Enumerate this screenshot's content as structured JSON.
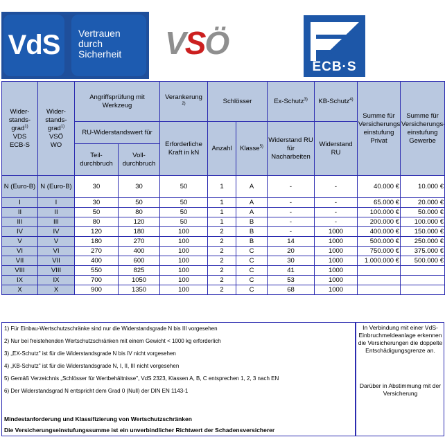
{
  "logos": {
    "vds_short": "VdS",
    "vds_tagline": "Vertrauen\ndurch\nSicherheit",
    "vso_left": "V",
    "vso_mid": "S",
    "vso_right": "Ö",
    "ecb": "ECB·S"
  },
  "header": {
    "wg_vds": [
      "Wider-",
      "stands-",
      "grad",
      "VDS",
      "ECB-S"
    ],
    "wg_vso": [
      "Wider-",
      "stands-",
      "grad",
      "VSÖ",
      "WO"
    ],
    "angriff": "Angriffsprüfung mit Werkzeug",
    "ru_wert": "RU-Widerstandswert für",
    "teil": "Teil-durchbruch",
    "voll": "Voll-durchbruch",
    "verankerung": "Verankerung",
    "kraft": "Erforderliche Kraft in kN",
    "schloesser": "Schlösser",
    "anzahl": "Anzahl",
    "klasse": "Klasse",
    "ex_schutz": "Ex-Schutz",
    "ex_sub": "Widerstand RU für Nacharbeiten",
    "kb_schutz": "KB-Schutz",
    "kb_sub": "Widerstand RU",
    "privat_head": "Summe für Versicherungs-einstufung",
    "privat": "Privat",
    "gewerbe_head": "Summe für Versicherungs-einstufung",
    "gewerbe": "Gewerbe"
  },
  "rows": [
    {
      "vds": "N (Euro-B)",
      "vso": "N (Euro-B)",
      "teil": "30",
      "voll": "30",
      "kraft": "50",
      "anzahl": "1",
      "klasse": "A",
      "ex": "-",
      "kb": "-",
      "privat": "40.000 €",
      "gewerbe": "10.000 €"
    },
    {
      "vds": "I",
      "vso": "I",
      "teil": "30",
      "voll": "50",
      "kraft": "50",
      "anzahl": "1",
      "klasse": "A",
      "ex": "-",
      "kb": "-",
      "privat": "65.000 €",
      "gewerbe": "20.000 €"
    },
    {
      "vds": "II",
      "vso": "II",
      "teil": "50",
      "voll": "80",
      "kraft": "50",
      "anzahl": "1",
      "klasse": "A",
      "ex": "-",
      "kb": "-",
      "privat": "100.000 €",
      "gewerbe": "50.000 €"
    },
    {
      "vds": "III",
      "vso": "III",
      "teil": "80",
      "voll": "120",
      "kraft": "50",
      "anzahl": "1",
      "klasse": "B",
      "ex": "-",
      "kb": "-",
      "privat": "200.000 €",
      "gewerbe": "100.000 €"
    },
    {
      "vds": "IV",
      "vso": "IV",
      "teil": "120",
      "voll": "180",
      "kraft": "100",
      "anzahl": "2",
      "klasse": "B",
      "ex": "-",
      "kb": "1000",
      "privat": "400.000 €",
      "gewerbe": "150.000 €"
    },
    {
      "vds": "V",
      "vso": "V",
      "teil": "180",
      "voll": "270",
      "kraft": "100",
      "anzahl": "2",
      "klasse": "B",
      "ex": "14",
      "kb": "1000",
      "privat": "500.000 €",
      "gewerbe": "250.000 €"
    },
    {
      "vds": "VI",
      "vso": "VI",
      "teil": "270",
      "voll": "400",
      "kraft": "100",
      "anzahl": "2",
      "klasse": "C",
      "ex": "20",
      "kb": "1000",
      "privat": "750.000 €",
      "gewerbe": "375.000 €"
    },
    {
      "vds": "VII",
      "vso": "VII",
      "teil": "400",
      "voll": "600",
      "kraft": "100",
      "anzahl": "2",
      "klasse": "C",
      "ex": "30",
      "kb": "1000",
      "privat": "1.000.000 €",
      "gewerbe": "500.000 €"
    },
    {
      "vds": "VIII",
      "vso": "VIII",
      "teil": "550",
      "voll": "825",
      "kraft": "100",
      "anzahl": "2",
      "klasse": "C",
      "ex": "41",
      "kb": "1000",
      "privat": "",
      "gewerbe": ""
    },
    {
      "vds": "IX",
      "vso": "IX",
      "teil": "700",
      "voll": "1050",
      "kraft": "100",
      "anzahl": "2",
      "klasse": "C",
      "ex": "53",
      "kb": "1000",
      "privat": "",
      "gewerbe": ""
    },
    {
      "vds": "X",
      "vso": "X",
      "teil": "900",
      "voll": "1350",
      "kraft": "100",
      "anzahl": "2",
      "klasse": "C",
      "ex": "68",
      "kb": "1000",
      "privat": "",
      "gewerbe": ""
    }
  ],
  "footnotes": [
    "1) Für Einbau-Wertschutzschränke sind nur die Widerstandsgrade N bis III vorgesehen",
    "2) Nur bei freistehenden Wertschutzschränken mit einem Gewicht < 1000 kg erforderlich",
    "3) „EX-Schutz\" ist für die Widerstandsgrade N bis IV nicht vorgesehen",
    "4) „KB-Schutz\" ist für die Widerstandsgrade N, I, II, III nicht vorgesehen",
    "5) Gemäß Verzeichnis „Schlösser für Wertbehältnisse\", VdS 2323, Klassen A, B, C entsprechen 1, 2, 3 nach EN",
    "6) Der Widerstandsgrad N entspricht dem Grad 0 (Null) der DIN EN 1143-1"
  ],
  "summary": [
    "Mindestanforderung und Klassifizierung von Wertschutzschränken",
    "Die Versicherungseinstufungssumme ist ein unverbindlicher Richtwert der Schadensversicherer"
  ],
  "right_notes": [
    "In Verbindung mit einer VdS-Einbruchmeldeanlage erkennen die Versicherungen die doppelte Entschädigungsgrenze an.",
    "Darüber in Abstimmung mit der Versicherung"
  ]
}
